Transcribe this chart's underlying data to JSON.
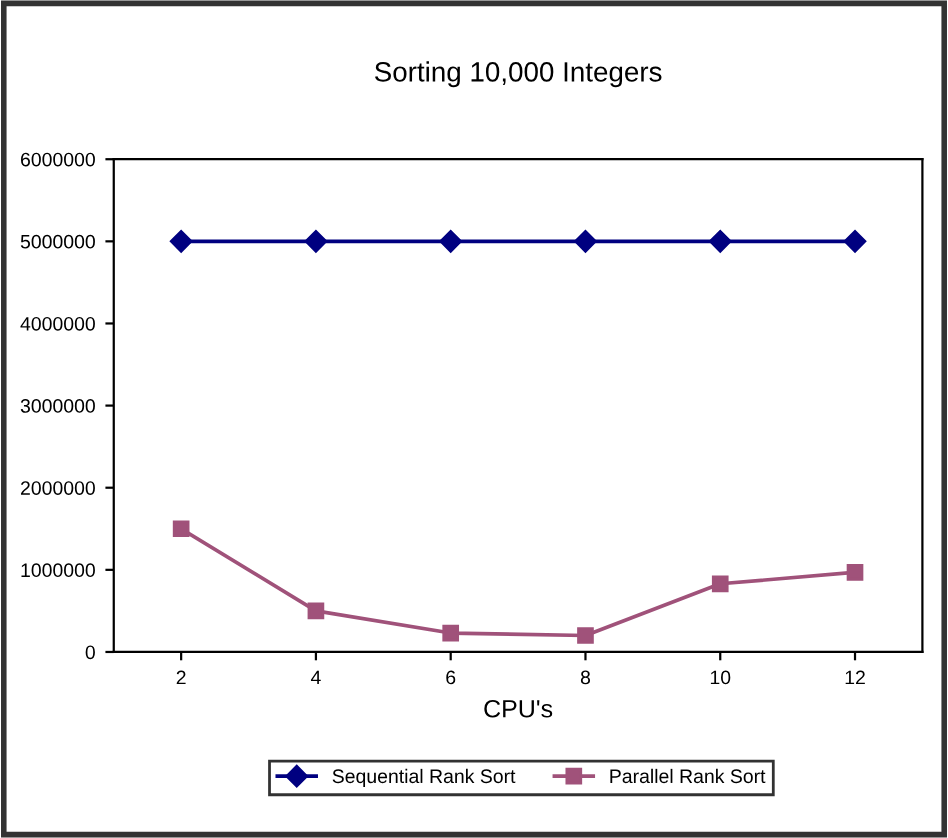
{
  "chart_data": {
    "type": "line",
    "title": "Sorting 10,000 Integers",
    "xlabel": "CPU's",
    "categories": [
      "2",
      "4",
      "6",
      "8",
      "10",
      "12"
    ],
    "series": [
      {
        "name": "Sequential Rank Sort",
        "color": "#000080",
        "marker": "diamond",
        "values": [
          5000000,
          5000000,
          5000000,
          5000000,
          5000000,
          5000000
        ]
      },
      {
        "name": "Parallel Rank Sort",
        "color": "#a0527a",
        "marker": "square",
        "values": [
          1500000,
          500000,
          230000,
          200000,
          830000,
          970000
        ]
      }
    ],
    "ylim": [
      0,
      6000000
    ],
    "yticks": [
      0,
      1000000,
      2000000,
      3000000,
      4000000,
      5000000,
      6000000
    ],
    "grid": false,
    "legend": "bottom",
    "line_style": "solid"
  }
}
